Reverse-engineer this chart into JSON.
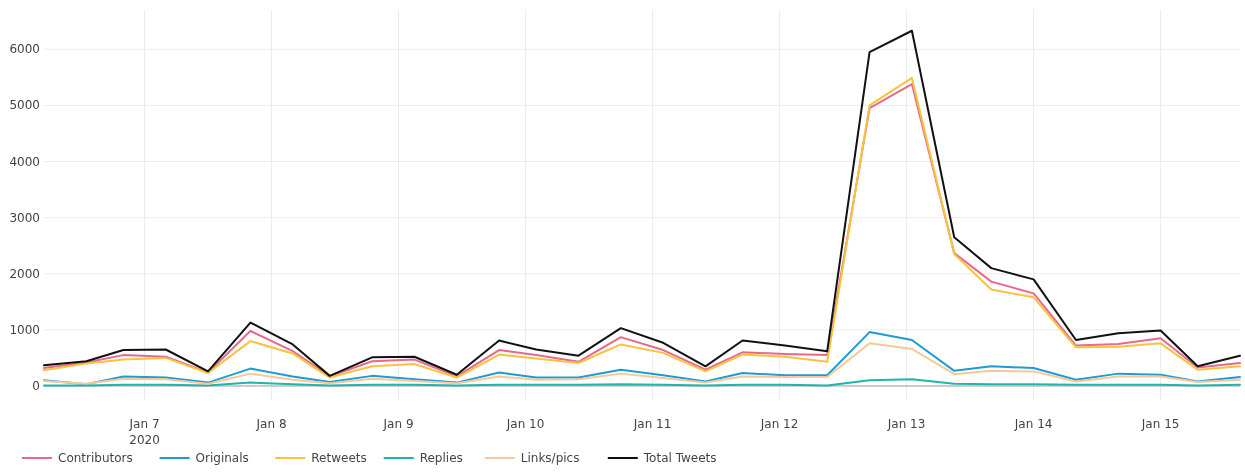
{
  "chart_data": {
    "type": "line",
    "x": [
      "2020-01-06T05:00",
      "2020-01-06T13:00",
      "2020-01-06T20:00",
      "2020-01-07T04:00",
      "2020-01-07T12:00",
      "2020-01-07T20:00",
      "2020-01-08T04:00",
      "2020-01-08T11:00",
      "2020-01-08T19:00",
      "2020-01-09T03:00",
      "2020-01-09T11:00",
      "2020-01-09T19:00",
      "2020-01-10T02:00",
      "2020-01-10T10:00",
      "2020-01-10T18:00",
      "2020-01-11T02:00",
      "2020-01-11T10:00",
      "2020-01-11T17:00",
      "2020-01-12T01:00",
      "2020-01-12T09:00",
      "2020-01-12T17:00",
      "2020-01-13T01:00",
      "2020-01-13T09:00",
      "2020-01-13T16:00",
      "2020-01-14T00:00",
      "2020-01-14T08:00",
      "2020-01-14T16:00",
      "2020-01-15T00:00",
      "2020-01-15T07:00",
      "2020-01-15T15:00"
    ],
    "series": [
      {
        "name": "Contributors",
        "color": "#e8698c",
        "values": [
          320,
          420,
          550,
          520,
          240,
          980,
          620,
          170,
          440,
          470,
          170,
          640,
          550,
          430,
          870,
          640,
          290,
          600,
          570,
          550,
          4950,
          5380,
          2370,
          1860,
          1650,
          720,
          750,
          850,
          330,
          410
        ]
      },
      {
        "name": "Originals",
        "color": "#1f9bd4",
        "values": [
          100,
          30,
          170,
          150,
          60,
          310,
          170,
          70,
          180,
          120,
          60,
          240,
          150,
          150,
          290,
          190,
          80,
          230,
          190,
          190,
          960,
          820,
          270,
          350,
          320,
          110,
          220,
          200,
          80,
          160
        ]
      },
      {
        "name": "Retweets",
        "color": "#f7c33e",
        "values": [
          280,
          400,
          470,
          500,
          230,
          800,
          580,
          150,
          350,
          390,
          150,
          560,
          490,
          410,
          740,
          590,
          260,
          560,
          520,
          430,
          5000,
          5490,
          2350,
          1720,
          1580,
          690,
          700,
          760,
          290,
          350
        ]
      },
      {
        "name": "Replies",
        "color": "#1fb5ad",
        "values": [
          10,
          10,
          20,
          20,
          10,
          60,
          30,
          10,
          20,
          20,
          10,
          20,
          20,
          20,
          30,
          20,
          10,
          20,
          20,
          10,
          100,
          120,
          40,
          30,
          30,
          20,
          20,
          20,
          10,
          20
        ]
      },
      {
        "name": "Links/pics",
        "color": "#f6c89a",
        "values": [
          90,
          40,
          130,
          120,
          40,
          220,
          110,
          50,
          130,
          90,
          50,
          170,
          110,
          120,
          220,
          140,
          60,
          170,
          160,
          160,
          760,
          660,
          210,
          270,
          260,
          80,
          170,
          170,
          70,
          110
        ]
      },
      {
        "name": "Total Tweets",
        "color": "#111111",
        "values": [
          370,
          440,
          640,
          650,
          260,
          1130,
          740,
          180,
          510,
          520,
          200,
          810,
          650,
          540,
          1030,
          770,
          350,
          810,
          720,
          620,
          5950,
          6330,
          2650,
          2100,
          1900,
          820,
          940,
          990,
          350,
          540
        ]
      }
    ],
    "xlim": [
      "2020-01-06T05:00",
      "2020-01-15T15:00"
    ],
    "xticks": [
      {
        "value": "2020-01-07",
        "label": "Jan 7\n2020"
      },
      {
        "value": "2020-01-08",
        "label": "Jan 8"
      },
      {
        "value": "2020-01-09",
        "label": "Jan 9"
      },
      {
        "value": "2020-01-10",
        "label": "Jan 10"
      },
      {
        "value": "2020-01-11",
        "label": "Jan 11"
      },
      {
        "value": "2020-01-12",
        "label": "Jan 12"
      },
      {
        "value": "2020-01-13",
        "label": "Jan 13"
      },
      {
        "value": "2020-01-14",
        "label": "Jan 14"
      },
      {
        "value": "2020-01-15",
        "label": "Jan 15"
      }
    ],
    "ylim": [
      -250,
      6700
    ],
    "yticks": [
      0,
      1000,
      2000,
      3000,
      4000,
      5000,
      6000
    ],
    "grid": true,
    "legend": "bottom left",
    "marker": "none",
    "line_style": "solid"
  }
}
